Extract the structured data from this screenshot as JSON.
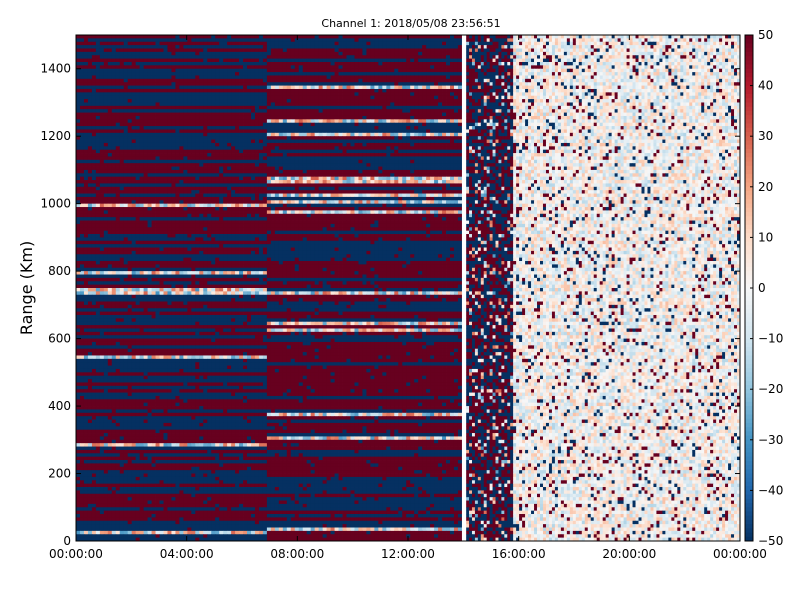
{
  "chart_data": {
    "type": "heatmap",
    "title": "Channel 1: 2018/05/08 23:56:51",
    "xlabel": "",
    "ylabel": "Range (Km)",
    "x_tick_labels": [
      "00:00:00",
      "04:00:00",
      "08:00:00",
      "12:00:00",
      "16:00:00",
      "20:00:00",
      "00:00:00"
    ],
    "x_ticks_hours": [
      0,
      4,
      8,
      12,
      16,
      20,
      24
    ],
    "xlim_hours": [
      0,
      24
    ],
    "y_ticks": [
      0,
      200,
      400,
      600,
      800,
      1000,
      1200,
      1400
    ],
    "ylim": [
      0,
      1500
    ],
    "colorbar": {
      "ticks": [
        50,
        40,
        30,
        20,
        10,
        0,
        -10,
        -20,
        -30,
        -40,
        -50
      ],
      "vmin": -50,
      "vmax": 50,
      "colormap": "RdBu_r",
      "colors": [
        "#053061",
        "#2166ac",
        "#4393c3",
        "#92c5de",
        "#d1e5f0",
        "#f7f7f7",
        "#fddbc7",
        "#f4a582",
        "#d6604d",
        "#b2182b",
        "#67001f"
      ]
    },
    "data_gap_hours": [
      13.95,
      14.1
    ],
    "regions": [
      {
        "hours": [
          0,
          6.9
        ],
        "description": "saturated alternating bands"
      },
      {
        "hours": [
          6.9,
          13.95
        ],
        "description": "saturated alternating bands"
      },
      {
        "hours": [
          14.1,
          15.8
        ],
        "description": "noisy saturated"
      },
      {
        "hours": [
          15.8,
          24
        ],
        "description": "low-magnitude values with scattered saturated pixels"
      }
    ]
  }
}
